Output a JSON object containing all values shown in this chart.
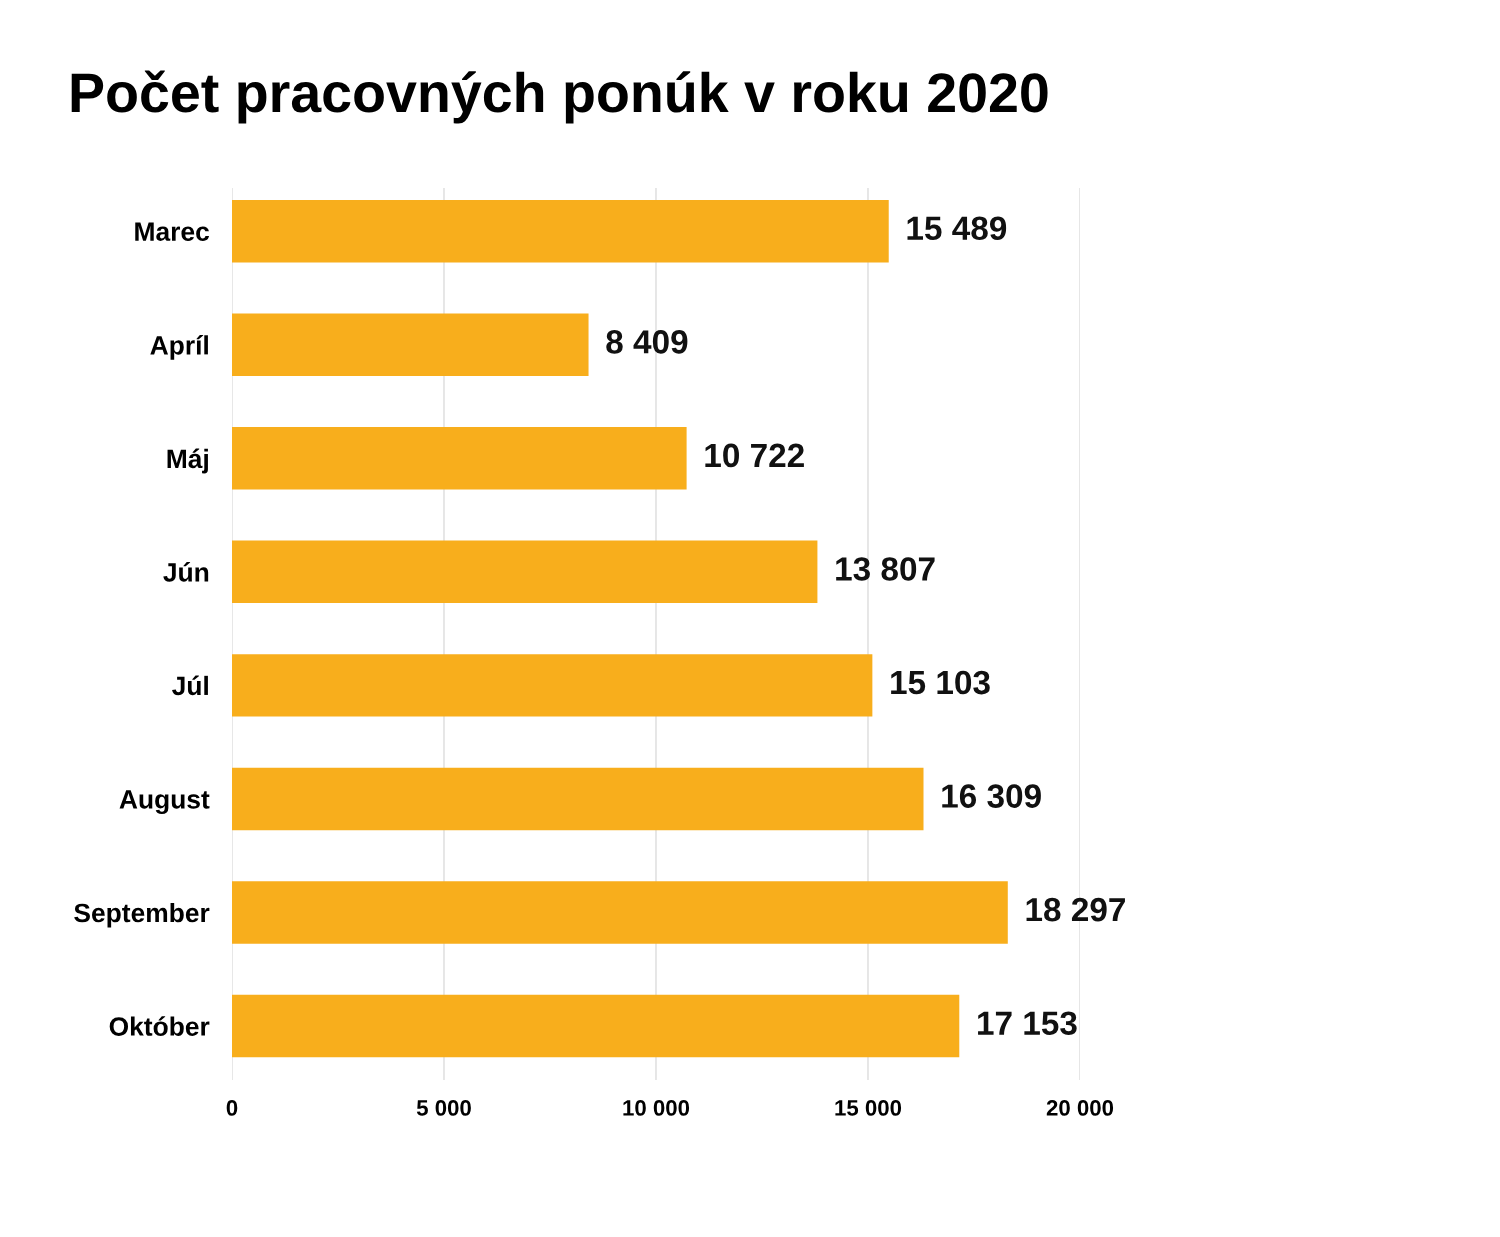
{
  "chart_data": {
    "type": "bar",
    "orientation": "horizontal",
    "title": "Počet pracovných ponúk v roku 2020",
    "categories": [
      "Marec",
      "Apríl",
      "Máj",
      "Jún",
      "Júl",
      "August",
      "September",
      "Október"
    ],
    "values": [
      15489,
      8409,
      10722,
      13807,
      15103,
      16309,
      18297,
      17153
    ],
    "value_labels": [
      "15 489",
      "8 409",
      "10 722",
      "13 807",
      "15 103",
      "16 309",
      "18 297",
      "17 153"
    ],
    "color": "#f8ae1c",
    "xlim": [
      0,
      20000
    ],
    "xticks": [
      0,
      {
        "value": 5000,
        "label": "5 000"
      },
      {
        "value": 10000,
        "label": "10 000"
      },
      {
        "value": 15000,
        "label": "15 000"
      },
      {
        "value": 20000,
        "label": "20 000"
      }
    ],
    "grid": "x",
    "legend": false
  }
}
